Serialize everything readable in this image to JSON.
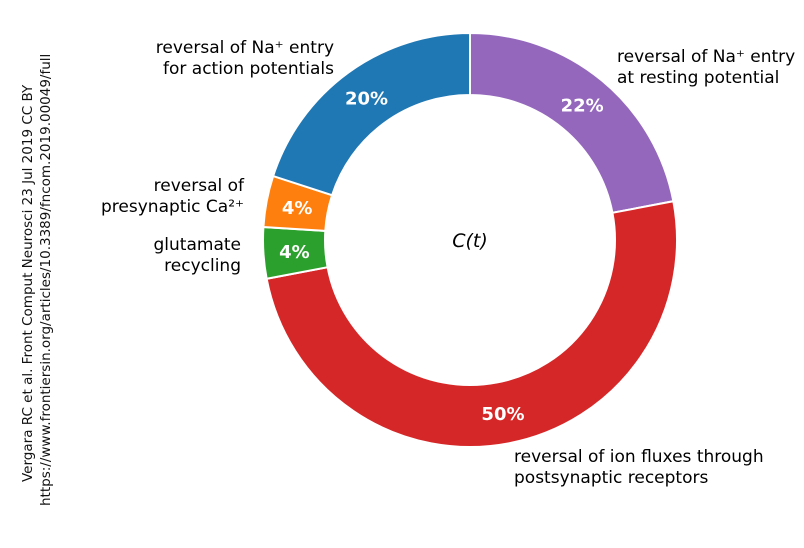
{
  "credit": {
    "line1": "Vergara RC et al. Front Comput Neurosci 23 Jul 2019 CC BY",
    "line2": "https://www.frontiersin.org/articles/10.3389/fncom.2019.00049/full"
  },
  "chart_data": {
    "type": "pie",
    "variant": "donut",
    "center_label": "C(t)",
    "slices": [
      {
        "label_lines": [
          "reversal of Na⁺ entry",
          "at resting potential"
        ],
        "value": 22,
        "value_label": "22%",
        "color": "#9467bd"
      },
      {
        "label_lines": [
          "reversal of ion fluxes through",
          "postsynaptic receptors"
        ],
        "value": 50,
        "value_label": "50%",
        "color": "#d62728"
      },
      {
        "label_lines": [
          "glutamate",
          "recycling"
        ],
        "value": 4,
        "value_label": "4%",
        "color": "#2ca02c"
      },
      {
        "label_lines": [
          "reversal of",
          "presynaptic Ca²⁺"
        ],
        "value": 4,
        "value_label": "4%",
        "color": "#ff7f0e"
      },
      {
        "label_lines": [
          "reversal of Na⁺ entry",
          "for action potentials"
        ],
        "value": 20,
        "value_label": "20%",
        "color": "#1f77b4"
      }
    ],
    "start": "top",
    "direction": "clockwise"
  }
}
